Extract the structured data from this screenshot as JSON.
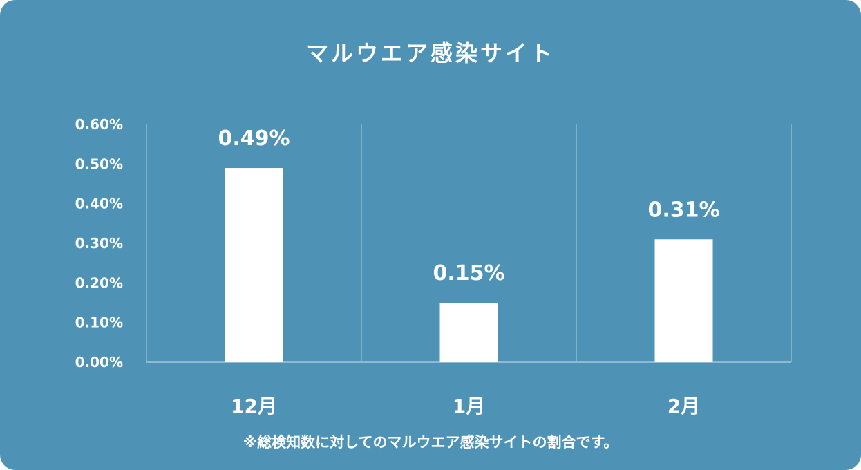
{
  "colors": {
    "background": "#4e93b6",
    "bar": "#ffffff",
    "grid": "#8fb9d0",
    "text": "#ffffff"
  },
  "footnote": "※総検知数に対してのマルウエア感染サイトの割合です。",
  "chart_data": {
    "type": "bar",
    "title": "マルウエア感染サイト",
    "categories": [
      "12月",
      "1月",
      "2月"
    ],
    "values": [
      0.49,
      0.15,
      0.31
    ],
    "data_labels": [
      "0.49%",
      "0.15%",
      "0.31%"
    ],
    "unit": "%",
    "ylim": [
      0,
      0.6
    ],
    "yticks": [
      0.0,
      0.1,
      0.2,
      0.3,
      0.4,
      0.5,
      0.6
    ],
    "ytick_labels": [
      "0.00%",
      "0.10%",
      "0.20%",
      "0.30%",
      "0.40%",
      "0.50%",
      "0.60%"
    ],
    "xlabel": "",
    "ylabel": "",
    "grid": "vertical category separators",
    "legend": "none"
  }
}
